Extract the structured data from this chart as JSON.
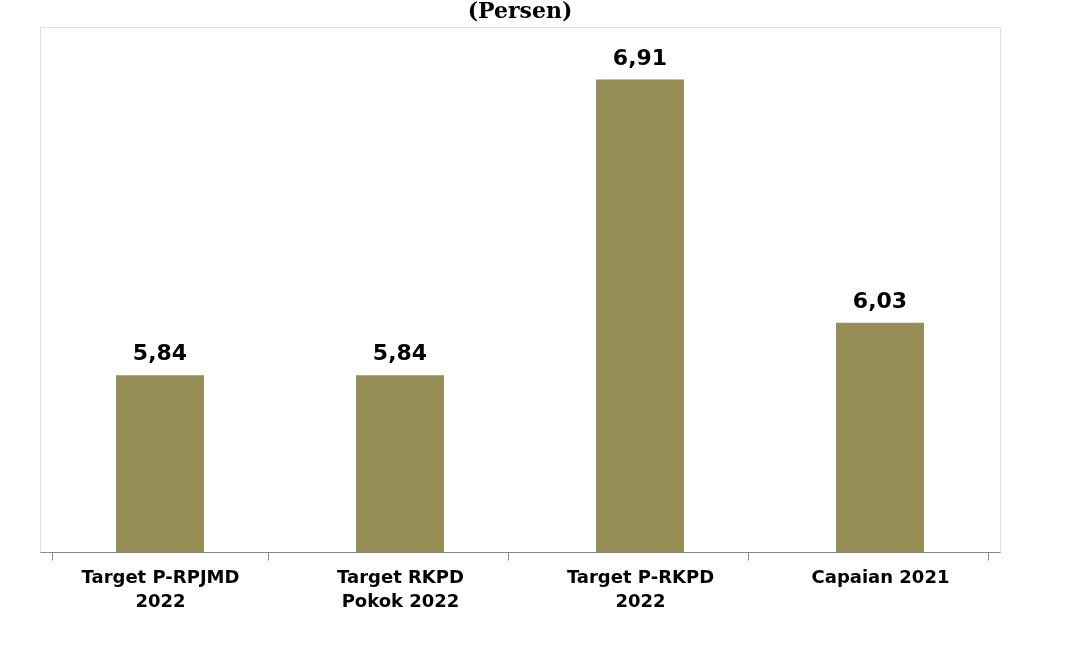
{
  "chart_data": {
    "type": "bar",
    "title": "(Persen)",
    "categories": [
      "Target P-RPJMD\n2022",
      "Target RKPD\nPokok 2022",
      "Target P-RKPD\n2022",
      "Capaian 2021"
    ],
    "values": [
      5.84,
      5.84,
      6.91,
      6.03
    ],
    "value_labels": [
      "5,84",
      "5,84",
      "6,91",
      "6,03"
    ],
    "color": "#968c55",
    "ylim": [
      5.2,
      7.1
    ],
    "grid": false
  }
}
